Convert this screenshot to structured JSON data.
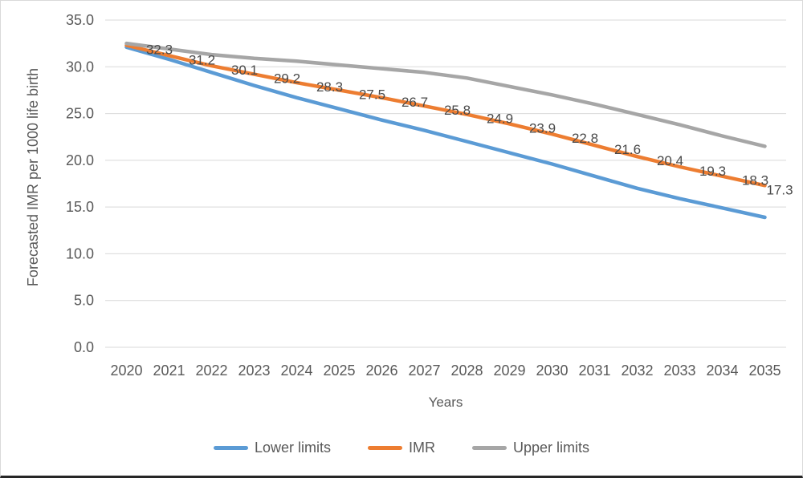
{
  "chart_data": {
    "type": "line",
    "title": "",
    "xlabel": "Years",
    "ylabel": "Forecasted IMR per 1000 life birth",
    "x": [
      "2020",
      "2021",
      "2022",
      "2023",
      "2024",
      "2025",
      "2026",
      "2027",
      "2028",
      "2029",
      "2030",
      "2031",
      "2032",
      "2033",
      "2034",
      "2035"
    ],
    "ylim": [
      0,
      35
    ],
    "yticks": [
      "35.0",
      "30.0",
      "25.0",
      "20.0",
      "15.0",
      "10.0",
      "5.0",
      "0.0"
    ],
    "ytick_values": [
      35,
      30,
      25,
      20,
      15,
      10,
      5,
      0
    ],
    "grid": true,
    "legend_position": "bottom",
    "series": [
      {
        "name": "Lower limits",
        "color": "#5B9BD5",
        "values": [
          32.1,
          30.8,
          29.4,
          28.0,
          26.7,
          25.5,
          24.3,
          23.2,
          22.0,
          20.8,
          19.6,
          18.3,
          17.0,
          15.9,
          14.9,
          13.9
        ],
        "show_labels": false
      },
      {
        "name": "IMR",
        "color": "#ED7D31",
        "values": [
          32.3,
          31.2,
          30.1,
          29.2,
          28.3,
          27.5,
          26.7,
          25.8,
          24.9,
          23.9,
          22.8,
          21.6,
          20.4,
          19.3,
          18.3,
          17.3
        ],
        "show_labels": true,
        "label_texts": [
          "32.3",
          "31.2",
          "30.1",
          "29.2",
          "28.3",
          "27.5",
          "26.7",
          "25.8",
          "24.9",
          "23.9",
          "22.8",
          "21.6",
          "20.4",
          "19.3",
          "18.3",
          "17.3"
        ]
      },
      {
        "name": "Upper limits",
        "color": "#A6A6A6",
        "values": [
          32.5,
          31.9,
          31.3,
          30.9,
          30.6,
          30.2,
          29.8,
          29.4,
          28.8,
          27.9,
          27.0,
          26.0,
          24.9,
          23.8,
          22.6,
          21.5
        ],
        "show_labels": false
      }
    ],
    "styles": {
      "axis_text_color": "#595959",
      "data_label_color": "#4a4a4a",
      "gridline_color": "#d9d9d9",
      "line_width": 4.5
    }
  }
}
